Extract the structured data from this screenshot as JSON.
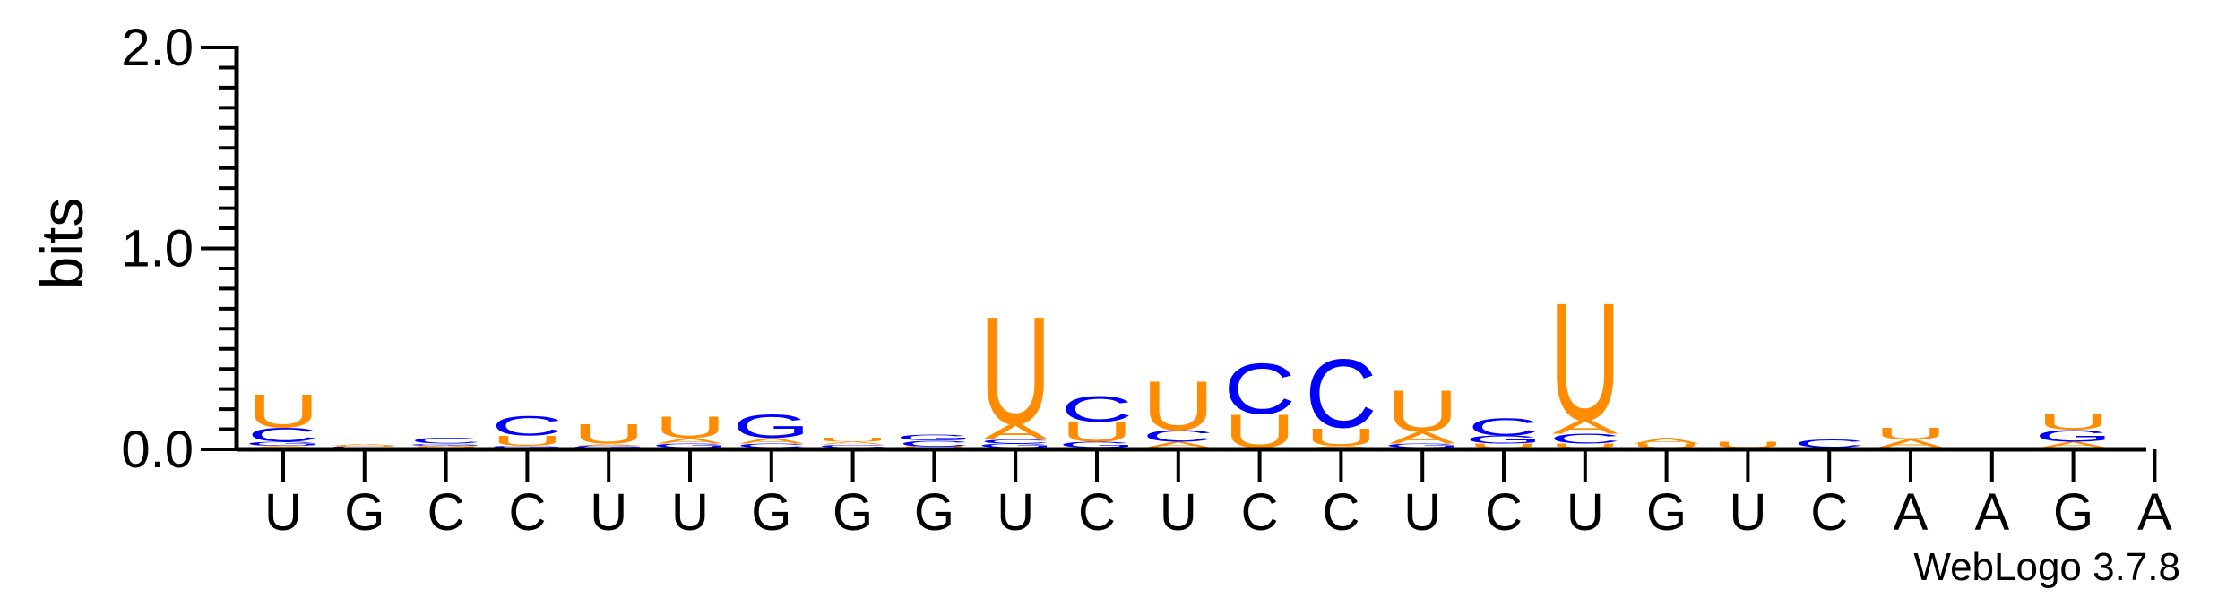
{
  "chart_data": {
    "type": "sequence-logo",
    "ylabel": "bits",
    "ylim": [
      0,
      2
    ],
    "yticks": [
      {
        "value": 0,
        "label": "0.0"
      },
      {
        "value": 1,
        "label": "1.0"
      },
      {
        "value": 2,
        "label": "2.0"
      }
    ],
    "y_minor_step": 0.1,
    "credit": "WebLogo 3.7.8",
    "colors": {
      "U": "#ff8c00",
      "A": "#ff8c00",
      "C": "#0000ff",
      "G": "#0000ff"
    },
    "positions": [
      {
        "label": "U",
        "stack": [
          {
            "letter": "A",
            "bits": 0.01
          },
          {
            "letter": "G",
            "bits": 0.02
          },
          {
            "letter": "C",
            "bits": 0.07
          },
          {
            "letter": "U",
            "bits": 0.17
          }
        ]
      },
      {
        "label": "G",
        "stack": [
          {
            "letter": "C",
            "bits": 0.005
          },
          {
            "letter": "U",
            "bits": 0.005
          },
          {
            "letter": "A",
            "bits": 0.01
          }
        ]
      },
      {
        "label": "C",
        "stack": [
          {
            "letter": "U",
            "bits": 0.005
          },
          {
            "letter": "A",
            "bits": 0.005
          },
          {
            "letter": "G",
            "bits": 0.01
          },
          {
            "letter": "C",
            "bits": 0.03
          }
        ]
      },
      {
        "label": "C",
        "stack": [
          {
            "letter": "G",
            "bits": 0.01
          },
          {
            "letter": "U",
            "bits": 0.05
          },
          {
            "letter": "C",
            "bits": 0.1
          }
        ]
      },
      {
        "label": "U",
        "stack": [
          {
            "letter": "G",
            "bits": 0.005
          },
          {
            "letter": "C",
            "bits": 0.005
          },
          {
            "letter": "A",
            "bits": 0.01
          },
          {
            "letter": "U",
            "bits": 0.1
          }
        ]
      },
      {
        "label": "U",
        "stack": [
          {
            "letter": "G",
            "bits": 0.02
          },
          {
            "letter": "A",
            "bits": 0.03
          },
          {
            "letter": "U",
            "bits": 0.11
          }
        ]
      },
      {
        "label": "G",
        "stack": [
          {
            "letter": "C",
            "bits": 0.02
          },
          {
            "letter": "A",
            "bits": 0.03
          },
          {
            "letter": "G",
            "bits": 0.12
          }
        ]
      },
      {
        "label": "G",
        "stack": [
          {
            "letter": "C",
            "bits": 0.015
          },
          {
            "letter": "A",
            "bits": 0.015
          },
          {
            "letter": "U",
            "bits": 0.02
          }
        ]
      },
      {
        "label": "G",
        "stack": [
          {
            "letter": "U",
            "bits": 0.005
          },
          {
            "letter": "C",
            "bits": 0.03
          },
          {
            "letter": "G",
            "bits": 0.03
          }
        ]
      },
      {
        "label": "U",
        "stack": [
          {
            "letter": "G",
            "bits": 0.02
          },
          {
            "letter": "C",
            "bits": 0.02
          },
          {
            "letter": "A",
            "bits": 0.08
          },
          {
            "letter": "U",
            "bits": 0.55
          }
        ]
      },
      {
        "label": "C",
        "stack": [
          {
            "letter": "G",
            "bits": 0.03
          },
          {
            "letter": "U",
            "bits": 0.1
          },
          {
            "letter": "C",
            "bits": 0.13
          }
        ]
      },
      {
        "label": "U",
        "stack": [
          {
            "letter": "A",
            "bits": 0.03
          },
          {
            "letter": "C",
            "bits": 0.06
          },
          {
            "letter": "U",
            "bits": 0.25
          }
        ]
      },
      {
        "label": "C",
        "stack": [
          {
            "letter": "U",
            "bits": 0.17
          },
          {
            "letter": "C",
            "bits": 0.26
          }
        ]
      },
      {
        "label": "C",
        "stack": [
          {
            "letter": "A",
            "bits": 0.01
          },
          {
            "letter": "U",
            "bits": 0.09
          },
          {
            "letter": "C",
            "bits": 0.35
          }
        ]
      },
      {
        "label": "U",
        "stack": [
          {
            "letter": "G",
            "bits": 0.02
          },
          {
            "letter": "A",
            "bits": 0.06
          },
          {
            "letter": "U",
            "bits": 0.21
          }
        ]
      },
      {
        "label": "C",
        "stack": [
          {
            "letter": "U",
            "bits": 0.02
          },
          {
            "letter": "G",
            "bits": 0.04
          },
          {
            "letter": "C",
            "bits": 0.09
          }
        ]
      },
      {
        "label": "U",
        "stack": [
          {
            "letter": "U",
            "bits": 0.02
          },
          {
            "letter": "C",
            "bits": 0.05
          },
          {
            "letter": "A",
            "bits": 0.07
          },
          {
            "letter": "U",
            "bits": 0.6
          }
        ]
      },
      {
        "label": "G",
        "stack": [
          {
            "letter": "U",
            "bits": 0.02
          },
          {
            "letter": "A",
            "bits": 0.03
          }
        ]
      },
      {
        "label": "U",
        "stack": [
          {
            "letter": "U",
            "bits": 0.03
          }
        ]
      },
      {
        "label": "C",
        "stack": [
          {
            "letter": "C",
            "bits": 0.04
          }
        ]
      },
      {
        "label": "A",
        "stack": [
          {
            "letter": "A",
            "bits": 0.04
          },
          {
            "letter": "U",
            "bits": 0.06
          }
        ]
      },
      {
        "label": "A",
        "stack": []
      },
      {
        "label": "G",
        "stack": [
          {
            "letter": "A",
            "bits": 0.03
          },
          {
            "letter": "G",
            "bits": 0.06
          },
          {
            "letter": "U",
            "bits": 0.08
          }
        ]
      },
      {
        "label": "A",
        "stack": []
      }
    ]
  }
}
